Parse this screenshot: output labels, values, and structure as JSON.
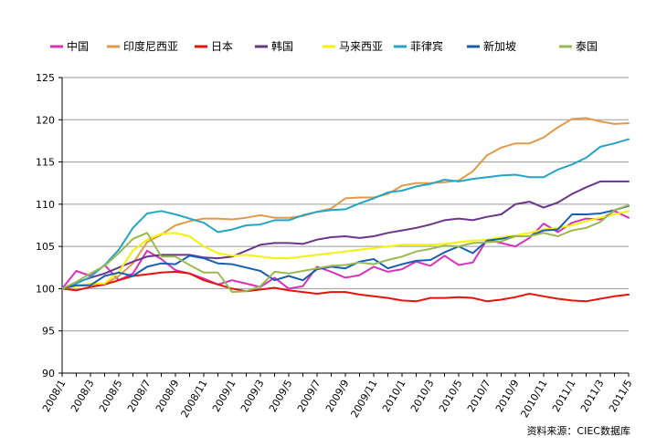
{
  "chart_data": {
    "type": "line",
    "title": "",
    "xlabel": "",
    "ylabel": "",
    "ylim": [
      90,
      125
    ],
    "yticks": [
      90,
      95,
      100,
      105,
      110,
      115,
      120,
      125
    ],
    "grid": "horizontal",
    "legend": "top",
    "source": "资料来源：CIEC数据库",
    "x": [
      "2008/1",
      "2008/2",
      "2008/3",
      "2008/4",
      "2008/5",
      "2008/6",
      "2008/7",
      "2008/8",
      "2008/9",
      "2008/10",
      "2008/11",
      "2008/12",
      "2009/1",
      "2009/2",
      "2009/3",
      "2009/4",
      "2009/5",
      "2009/6",
      "2009/7",
      "2009/8",
      "2009/9",
      "2009/10",
      "2009/11",
      "2009/12",
      "2010/1",
      "2010/2",
      "2010/3",
      "2010/4",
      "2010/5",
      "2010/6",
      "2010/7",
      "2010/8",
      "2010/9",
      "2010/10",
      "2010/11",
      "2010/12",
      "2011/1",
      "2011/2",
      "2011/3",
      "2011/4",
      "2011/5"
    ],
    "xtick_labels": [
      "2008/1",
      "2008/3",
      "2008/5",
      "2008/7",
      "2008/9",
      "2008/11",
      "2009/1",
      "2009/3",
      "2009/5",
      "2009/7",
      "2009/9",
      "2009/11",
      "2010/1",
      "2010/3",
      "2010/5",
      "2010/7",
      "2010/9",
      "2010/11",
      "2011/1",
      "2011/3",
      "2011/5"
    ],
    "series": [
      {
        "name": "中国",
        "color": "#d633b8",
        "values": [
          100,
          102.1,
          101.5,
          102.8,
          101.0,
          101.8,
          104.5,
          103.5,
          102.2,
          101.8,
          101.2,
          100.5,
          101.0,
          100.6,
          100.2,
          101.3,
          100.0,
          100.3,
          102.6,
          102.0,
          101.3,
          101.6,
          102.6,
          102.0,
          102.3,
          103.2,
          102.7,
          103.9,
          102.8,
          103.1,
          105.8,
          105.4,
          105.0,
          106.0,
          107.7,
          106.7,
          107.8,
          108.3,
          108.2,
          109.2,
          108.4
        ]
      },
      {
        "name": "印度尼西亚",
        "color": "#e29a4a",
        "values": [
          100,
          100.3,
          100.5,
          100.5,
          101.5,
          103.0,
          105.5,
          106.4,
          107.5,
          108.0,
          108.3,
          108.3,
          108.2,
          108.4,
          108.7,
          108.4,
          108.4,
          108.6,
          109.1,
          109.5,
          110.7,
          110.8,
          110.8,
          111.2,
          112.2,
          112.5,
          112.5,
          112.6,
          112.8,
          113.9,
          115.8,
          116.7,
          117.2,
          117.2,
          117.9,
          119.1,
          120.1,
          120.2,
          119.8,
          119.5,
          119.6
        ]
      },
      {
        "name": "日本",
        "color": "#e4140b",
        "values": [
          100,
          99.8,
          100.2,
          100.5,
          101.0,
          101.5,
          101.7,
          101.9,
          102.0,
          101.8,
          101.0,
          100.5,
          100.0,
          99.7,
          99.9,
          100.1,
          99.8,
          99.6,
          99.4,
          99.6,
          99.6,
          99.3,
          99.1,
          98.9,
          98.6,
          98.5,
          98.9,
          98.9,
          99.0,
          98.9,
          98.5,
          98.7,
          99.0,
          99.4,
          99.1,
          98.8,
          98.6,
          98.5,
          98.8,
          99.1,
          99.3
        ]
      },
      {
        "name": "韩国",
        "color": "#6a3689",
        "values": [
          100,
          100.7,
          101.3,
          101.8,
          102.5,
          103.2,
          103.8,
          104.0,
          104.0,
          104.0,
          103.7,
          103.6,
          103.8,
          104.5,
          105.2,
          105.4,
          105.4,
          105.3,
          105.8,
          106.1,
          106.2,
          106.0,
          106.2,
          106.6,
          106.9,
          107.2,
          107.6,
          108.1,
          108.3,
          108.1,
          108.5,
          108.8,
          110.0,
          110.3,
          109.6,
          110.2,
          111.2,
          112.0,
          112.7,
          112.7,
          112.7
        ]
      },
      {
        "name": "马来西亚",
        "color": "#f5f20a",
        "values": [
          100,
          100.3,
          100.6,
          100.6,
          102.0,
          104.5,
          105.8,
          106.5,
          106.6,
          106.2,
          105.0,
          104.2,
          103.9,
          104.0,
          103.8,
          103.6,
          103.6,
          103.8,
          104.0,
          104.2,
          104.4,
          104.6,
          104.8,
          105.0,
          105.2,
          105.2,
          105.2,
          105.3,
          105.5,
          105.7,
          105.8,
          106.1,
          106.3,
          106.6,
          107.0,
          107.2,
          107.5,
          108.0,
          108.4,
          108.8,
          109.2
        ]
      },
      {
        "name": "菲律宾",
        "color": "#26a4c4",
        "values": [
          100,
          100.6,
          101.4,
          102.8,
          104.6,
          107.2,
          108.9,
          109.2,
          108.8,
          108.3,
          107.8,
          106.7,
          107.0,
          107.5,
          107.6,
          108.1,
          108.1,
          108.7,
          109.1,
          109.3,
          109.4,
          110.1,
          110.7,
          111.4,
          111.6,
          112.1,
          112.4,
          112.9,
          112.7,
          113.0,
          113.2,
          113.4,
          113.5,
          113.2,
          113.2,
          114.1,
          114.7,
          115.5,
          116.8,
          117.2,
          117.7
        ]
      },
      {
        "name": "新加坡",
        "color": "#1a5eaf",
        "values": [
          100,
          100.4,
          100.4,
          101.5,
          101.9,
          101.5,
          102.6,
          103.0,
          102.9,
          103.9,
          103.6,
          103.0,
          102.9,
          102.5,
          102.1,
          101.0,
          101.5,
          101.0,
          102.3,
          102.6,
          102.4,
          103.2,
          103.5,
          102.4,
          102.9,
          103.3,
          103.4,
          104.3,
          105.0,
          104.2,
          105.7,
          105.9,
          106.2,
          106.2,
          106.9,
          107.0,
          108.8,
          108.8,
          108.9,
          109.3,
          109.8
        ]
      },
      {
        "name": "泰国",
        "color": "#9ab951",
        "values": [
          100,
          100.8,
          101.8,
          102.7,
          104.2,
          105.9,
          106.6,
          103.8,
          103.8,
          102.8,
          101.9,
          101.9,
          99.6,
          99.7,
          100.3,
          102.0,
          101.8,
          102.1,
          102.4,
          102.7,
          102.8,
          103.1,
          102.9,
          103.4,
          103.8,
          104.4,
          104.7,
          105.1,
          105.0,
          105.4,
          105.5,
          105.6,
          106.2,
          106.2,
          106.6,
          106.2,
          106.9,
          107.2,
          107.9,
          109.3,
          109.9
        ]
      }
    ]
  }
}
